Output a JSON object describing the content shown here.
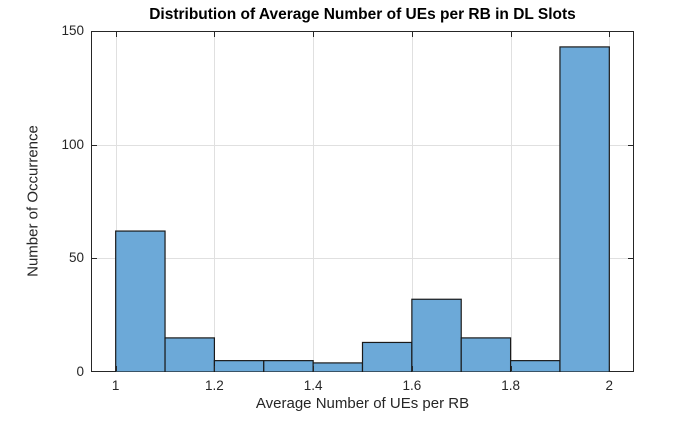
{
  "chart_data": {
    "type": "bar",
    "subtype": "histogram",
    "title": "Distribution of Average Number of UEs per RB in DL Slots",
    "xlabel": "Average Number of UEs per RB",
    "ylabel": "Number of Occurrence",
    "bin_edges": [
      1.0,
      1.1,
      1.2,
      1.3,
      1.4,
      1.5,
      1.6,
      1.7,
      1.8,
      1.9,
      2.0
    ],
    "values": [
      62,
      15,
      5,
      5,
      4,
      13,
      32,
      15,
      5,
      143
    ],
    "xlim": [
      0.95,
      2.05
    ],
    "ylim": [
      0,
      150
    ],
    "x_ticks": [
      1,
      1.2,
      1.4,
      1.6,
      1.8,
      2
    ],
    "x_tick_labels": [
      "1",
      "1.2",
      "1.4",
      "1.6",
      "1.8",
      "2"
    ],
    "y_ticks": [
      0,
      50,
      100,
      150
    ],
    "y_tick_labels": [
      "0",
      "50",
      "100",
      "150"
    ],
    "grid": true,
    "legend": null,
    "colors": {
      "bar_fill": "#6CA9D8",
      "bar_edge": "#1A1A1A",
      "axis": "#262626",
      "grid": "#E0E0E0",
      "title_text": "#000000",
      "background": "#FFFFFF"
    }
  }
}
